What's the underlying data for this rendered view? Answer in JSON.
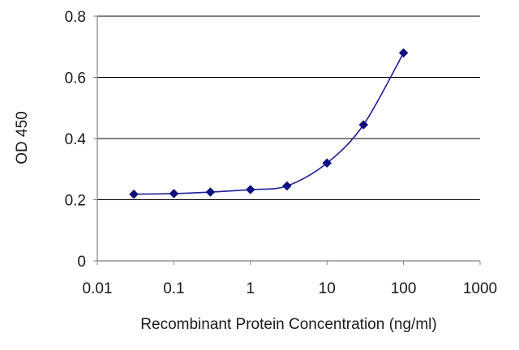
{
  "chart_data": {
    "type": "line",
    "title": "",
    "xlabel": "Recombinant Protein Concentration (ng/ml)",
    "ylabel": "OD 450",
    "x_scale": "log",
    "xlim": [
      0.01,
      1000
    ],
    "ylim": [
      0,
      0.8
    ],
    "x_ticks": [
      {
        "value": 0.01,
        "label": "0.01"
      },
      {
        "value": 0.1,
        "label": "0.1"
      },
      {
        "value": 1,
        "label": "1"
      },
      {
        "value": 10,
        "label": "10"
      },
      {
        "value": 100,
        "label": "100"
      },
      {
        "value": 1000,
        "label": "1000"
      }
    ],
    "y_ticks": [
      {
        "value": 0,
        "label": "0"
      },
      {
        "value": 0.2,
        "label": "0.2"
      },
      {
        "value": 0.4,
        "label": "0.4"
      },
      {
        "value": 0.6,
        "label": "0.6"
      },
      {
        "value": 0.8,
        "label": "0.8"
      }
    ],
    "grid": "horizontal",
    "legend": "none",
    "series": [
      {
        "x": [
          0.03,
          0.1,
          0.3,
          1,
          3,
          10,
          30,
          100
        ],
        "y": [
          0.218,
          0.22,
          0.225,
          0.233,
          0.245,
          0.32,
          0.445,
          0.68
        ]
      }
    ],
    "colors": {
      "series": "#1f1f9a",
      "marker": "#0d0d80",
      "grid": "#000000",
      "axis": "#808080"
    }
  }
}
